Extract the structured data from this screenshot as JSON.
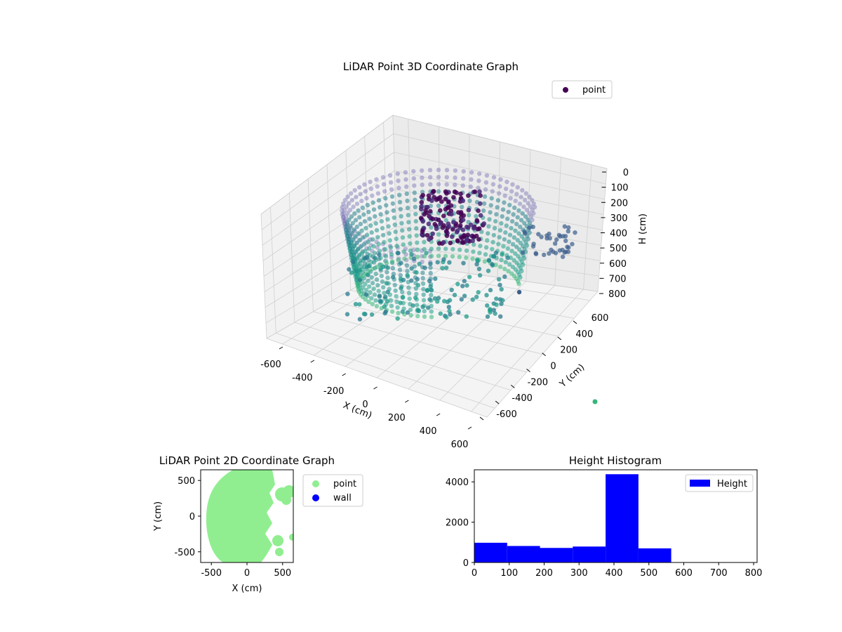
{
  "chart_data": [
    {
      "type": "scatter3d",
      "title": "LiDAR Point 3D Coordinate Graph",
      "xlabel": "X (cm)",
      "ylabel": "Y (cm)",
      "zlabel": "H (cm)",
      "xticks": [
        "-600",
        "-400",
        "-200",
        "0",
        "200",
        "400",
        "600"
      ],
      "yticks": [
        "600",
        "400",
        "200",
        "0",
        "-200",
        "-400",
        "-600"
      ],
      "zticks": [
        "0",
        "100",
        "200",
        "300",
        "400",
        "500",
        "600",
        "700",
        "800"
      ],
      "xlim": [
        -650,
        650
      ],
      "ylim": [
        -650,
        650
      ],
      "zlim": [
        0,
        800
      ],
      "zinverted": true,
      "colormap": "viridis",
      "legend": [
        {
          "label": "point",
          "color": "#440154"
        }
      ],
      "legend_position": "top-right",
      "grid": true
    },
    {
      "type": "scatter",
      "title": "LiDAR Point 2D Coordinate Graph",
      "xlabel": "X (cm)",
      "ylabel": "Y (cm)",
      "xticks": [
        "-500",
        "0",
        "500"
      ],
      "yticks": [
        "500",
        "0",
        "-500"
      ],
      "xlim": [
        -650,
        650
      ],
      "ylim": [
        -650,
        650
      ],
      "series": [
        {
          "name": "point",
          "color": "#90ee90"
        },
        {
          "name": "wall",
          "color": "#0000ff"
        }
      ],
      "legend_position": "outside-right"
    },
    {
      "type": "bar",
      "title": "Height Histogram",
      "xticks": [
        "0",
        "100",
        "200",
        "300",
        "400",
        "500",
        "600",
        "700",
        "800"
      ],
      "yticks": [
        "4000",
        "2000",
        "0"
      ],
      "xlim": [
        0,
        810
      ],
      "ylim": [
        0,
        4600
      ],
      "bins": [
        {
          "x0": 0,
          "x1": 94,
          "value": 980
        },
        {
          "x0": 94,
          "x1": 188,
          "value": 820
        },
        {
          "x0": 188,
          "x1": 282,
          "value": 720
        },
        {
          "x0": 282,
          "x1": 376,
          "value": 790
        },
        {
          "x0": 376,
          "x1": 470,
          "value": 4380
        },
        {
          "x0": 470,
          "x1": 564,
          "value": 700
        },
        {
          "x0": 564,
          "x1": 658,
          "value": 0
        },
        {
          "x0": 658,
          "x1": 752,
          "value": 0
        }
      ],
      "color": "#0000ff",
      "legend": [
        {
          "label": "Height",
          "color": "#0000ff"
        }
      ],
      "legend_position": "top-right"
    }
  ]
}
